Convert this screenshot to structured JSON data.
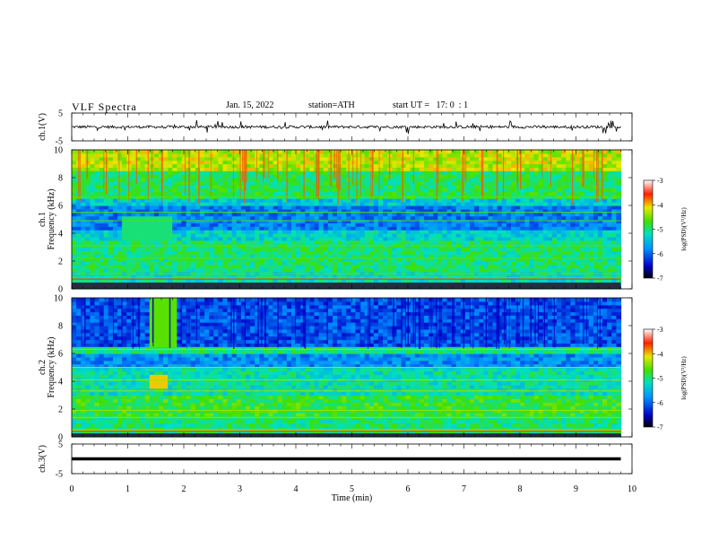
{
  "header": {
    "title": "VLF Spectra",
    "date": "Jan. 15, 2022",
    "station": "station=ATH",
    "start_ut": "start UT =   17: 0  : 1"
  },
  "colorbar": {
    "label": "log(PSD)(V²/Hz)",
    "ticks": [
      "-3",
      "-4",
      "-5",
      "-6",
      "-7"
    ]
  },
  "chart_data": [
    {
      "type": "line",
      "name": "ch1-waveform",
      "ylabel": "ch.1(V)",
      "ylim": [
        -5,
        5
      ],
      "y_ticks": [
        "5",
        "-5"
      ],
      "x": [
        0,
        1,
        2,
        3,
        4,
        5,
        6,
        7,
        8,
        9,
        9.8
      ],
      "values": [
        0,
        0,
        0,
        0,
        0,
        0,
        0,
        0,
        0,
        0,
        0
      ]
    },
    {
      "type": "heatmap",
      "name": "ch1-spectrogram",
      "ylabel": "ch.1\nFrequency (kHz)",
      "ylim": [
        0,
        10
      ],
      "y_ticks": [
        "0",
        "2",
        "4",
        "6",
        "8",
        "10"
      ],
      "xlim": [
        0,
        9.8
      ]
    },
    {
      "type": "heatmap",
      "name": "ch2-spectrogram",
      "ylabel": "ch.2\nFrequency (kHz)",
      "ylim": [
        0,
        10
      ],
      "y_ticks": [
        "0",
        "2",
        "4",
        "6",
        "8",
        "10"
      ],
      "xlim": [
        0,
        9.8
      ]
    },
    {
      "type": "line",
      "name": "ch3-waveform",
      "ylabel": "ch.3(V)",
      "ylim": [
        -5,
        5
      ],
      "y_ticks": [
        "5",
        "-5"
      ],
      "x": [
        0,
        9.8
      ],
      "values": [
        0,
        0
      ]
    }
  ],
  "x_axis": {
    "label": "Time (min)",
    "ticks": [
      "0",
      "1",
      "2",
      "3",
      "4",
      "5",
      "6",
      "7",
      "8",
      "9",
      "10"
    ],
    "xlim": [
      0,
      10
    ]
  }
}
